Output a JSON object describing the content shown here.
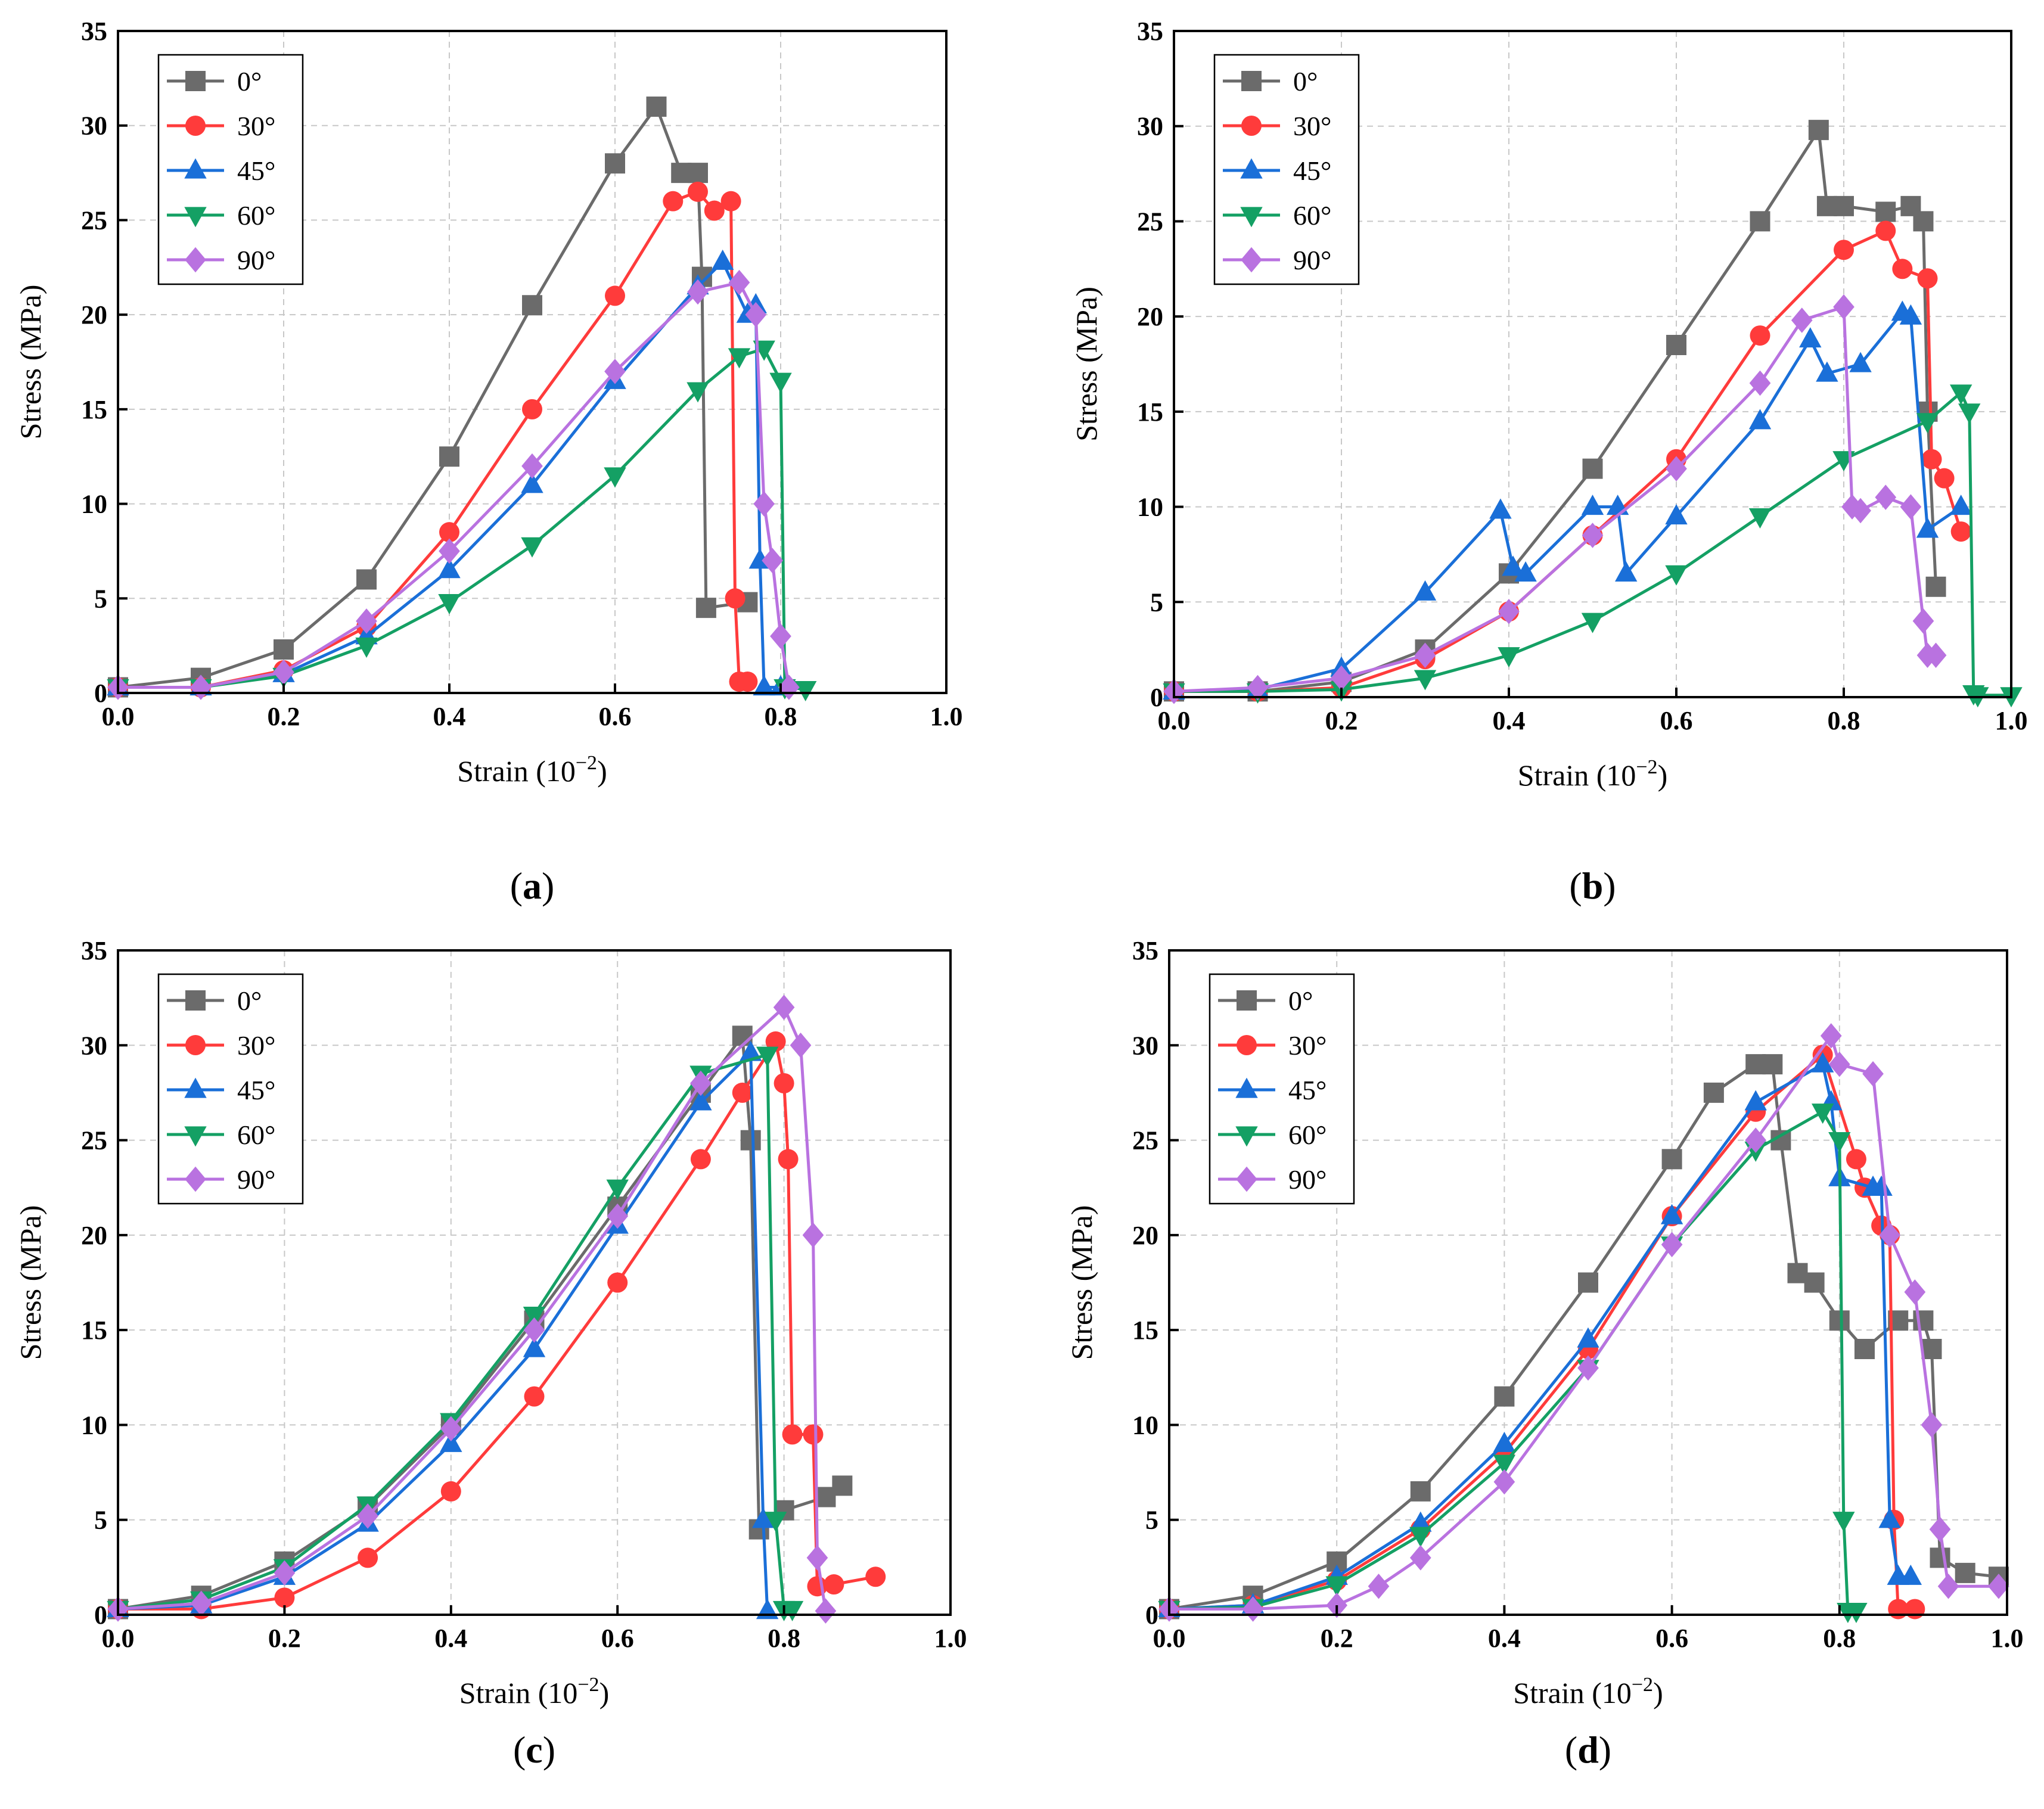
{
  "colors": {
    "0°": "#6b6b6b",
    "30°": "#ff3b3b",
    "45°": "#1a6fd8",
    "60°": "#14a064",
    "90°": "#b972e0"
  },
  "markers": {
    "0°": "square",
    "30°": "circle",
    "45°": "triangle-up",
    "60°": "triangle-down",
    "90°": "diamond"
  },
  "chart_data": [
    {
      "type": "line",
      "caption_letter": "a",
      "caption_open": "(",
      "caption_close": ")",
      "xlabel": "Strain (10",
      "xlabel_sup": "−2",
      "xlabel_end": ")",
      "ylabel": "Stress (MPa)",
      "xlim": [
        0,
        1.0
      ],
      "ylim": [
        0,
        35
      ],
      "xticks": [
        "0.0",
        "0.2",
        "0.4",
        "0.6",
        "0.8",
        "1.0"
      ],
      "yticks": [
        "0",
        "5",
        "10",
        "15",
        "20",
        "25",
        "30",
        "35"
      ],
      "legend": "top-left",
      "series": [
        {
          "name": "0°",
          "x": [
            0,
            0.1,
            0.2,
            0.3,
            0.4,
            0.5,
            0.6,
            0.65,
            0.68,
            0.7,
            0.705,
            0.71,
            0.76
          ],
          "y": [
            0.3,
            0.8,
            2.3,
            6,
            12.5,
            20.5,
            28,
            31,
            27.5,
            27.5,
            22,
            4.5,
            4.8
          ]
        },
        {
          "name": "30°",
          "x": [
            0,
            0.1,
            0.2,
            0.3,
            0.4,
            0.5,
            0.6,
            0.67,
            0.7,
            0.72,
            0.74,
            0.745,
            0.75,
            0.76
          ],
          "y": [
            0.3,
            0.3,
            1.2,
            3.5,
            8.5,
            15,
            21,
            26,
            26.5,
            25.5,
            26,
            5,
            0.6,
            0.6
          ]
        },
        {
          "name": "45°",
          "x": [
            0,
            0.1,
            0.2,
            0.3,
            0.4,
            0.5,
            0.6,
            0.7,
            0.73,
            0.76,
            0.77,
            0.775,
            0.78,
            0.8
          ],
          "y": [
            0.3,
            0.3,
            1,
            3,
            6.5,
            11,
            16.5,
            21.5,
            22.8,
            20,
            20.5,
            7,
            0.3,
            0.3
          ]
        },
        {
          "name": "60°",
          "x": [
            0,
            0.1,
            0.2,
            0.3,
            0.4,
            0.5,
            0.6,
            0.7,
            0.75,
            0.78,
            0.8,
            0.805,
            0.83
          ],
          "y": [
            0.3,
            0.3,
            0.9,
            2.5,
            4.8,
            7.8,
            11.5,
            16,
            17.8,
            18.2,
            16.5,
            0.3,
            0.2
          ]
        },
        {
          "name": "90°",
          "x": [
            0,
            0.1,
            0.2,
            0.3,
            0.4,
            0.5,
            0.6,
            0.7,
            0.75,
            0.77,
            0.78,
            0.79,
            0.8,
            0.81
          ],
          "y": [
            0.3,
            0.3,
            1.1,
            3.8,
            7.5,
            12,
            17,
            21.2,
            21.7,
            20,
            10,
            7,
            3,
            0.3
          ]
        }
      ]
    },
    {
      "type": "line",
      "caption_letter": "b",
      "caption_open": "(",
      "caption_close": ")",
      "xlabel": "Strain (10",
      "xlabel_sup": "−2",
      "xlabel_end": ")",
      "ylabel": "Stress (MPa)",
      "xlim": [
        0,
        1.0
      ],
      "ylim": [
        0,
        35
      ],
      "xticks": [
        "0.0",
        "0.2",
        "0.4",
        "0.6",
        "0.8",
        "1.0"
      ],
      "yticks": [
        "0",
        "5",
        "10",
        "15",
        "20",
        "25",
        "30",
        "35"
      ],
      "legend": "top-left",
      "series": [
        {
          "name": "0°",
          "x": [
            0,
            0.1,
            0.2,
            0.3,
            0.4,
            0.5,
            0.6,
            0.7,
            0.77,
            0.78,
            0.8,
            0.85,
            0.88,
            0.895,
            0.9,
            0.91
          ],
          "y": [
            0.3,
            0.3,
            0.8,
            2.5,
            6.5,
            12,
            18.5,
            25,
            29.8,
            25.8,
            25.8,
            25.5,
            25.8,
            25,
            15,
            5.8
          ]
        },
        {
          "name": "30°",
          "x": [
            0,
            0.1,
            0.2,
            0.3,
            0.4,
            0.5,
            0.6,
            0.7,
            0.8,
            0.85,
            0.87,
            0.9,
            0.905,
            0.92,
            0.94
          ],
          "y": [
            0.3,
            0.3,
            0.5,
            2,
            4.5,
            8.5,
            12.5,
            19,
            23.5,
            24.5,
            22.5,
            22,
            12.5,
            11.5,
            8.7
          ]
        },
        {
          "name": "45°",
          "x": [
            0,
            0.1,
            0.2,
            0.3,
            0.39,
            0.405,
            0.42,
            0.5,
            0.53,
            0.54,
            0.6,
            0.7,
            0.76,
            0.78,
            0.82,
            0.87,
            0.88,
            0.9,
            0.94
          ],
          "y": [
            0.3,
            0.4,
            1.5,
            5.5,
            9.8,
            6.8,
            6.5,
            10,
            10,
            6.5,
            9.5,
            14.5,
            18.8,
            17,
            17.5,
            20.2,
            20,
            8.8,
            10
          ]
        },
        {
          "name": "60°",
          "x": [
            0,
            0.1,
            0.2,
            0.3,
            0.4,
            0.5,
            0.6,
            0.7,
            0.8,
            0.9,
            0.94,
            0.95,
            0.955,
            0.96,
            1.0
          ],
          "y": [
            0.3,
            0.3,
            0.4,
            1,
            2.2,
            4,
            6.5,
            9.5,
            12.5,
            14.5,
            16,
            15,
            0.2,
            0.1,
            0.1
          ]
        },
        {
          "name": "90°",
          "x": [
            0,
            0.1,
            0.2,
            0.3,
            0.4,
            0.5,
            0.6,
            0.7,
            0.75,
            0.8,
            0.81,
            0.82,
            0.85,
            0.88,
            0.895,
            0.9,
            0.91
          ],
          "y": [
            0.3,
            0.5,
            1,
            2.2,
            4.5,
            8.5,
            12,
            16.5,
            19.8,
            20.5,
            10,
            9.8,
            10.5,
            10,
            4,
            2.2,
            2.2
          ]
        }
      ]
    },
    {
      "type": "line",
      "caption_letter": "c",
      "caption_open": "(",
      "caption_close": ")",
      "xlabel": "Strain (10",
      "xlabel_sup": "−2",
      "xlabel_end": ")",
      "ylabel": "Stress (MPa)",
      "xlim": [
        0,
        1.0
      ],
      "ylim": [
        0,
        35
      ],
      "xticks": [
        "0.0",
        "0.2",
        "0.4",
        "0.6",
        "0.8",
        "1.0"
      ],
      "yticks": [
        "0",
        "5",
        "10",
        "15",
        "20",
        "25",
        "30",
        "35"
      ],
      "legend": "top-left",
      "series": [
        {
          "name": "0°",
          "x": [
            0,
            0.1,
            0.2,
            0.3,
            0.4,
            0.5,
            0.6,
            0.7,
            0.75,
            0.76,
            0.77,
            0.8,
            0.85,
            0.87
          ],
          "y": [
            0.3,
            1,
            2.8,
            5.7,
            10,
            15.5,
            21.5,
            27.5,
            30.5,
            25,
            4.5,
            5.5,
            6.2,
            6.8
          ]
        },
        {
          "name": "30°",
          "x": [
            0,
            0.1,
            0.2,
            0.3,
            0.4,
            0.5,
            0.6,
            0.7,
            0.75,
            0.79,
            0.8,
            0.805,
            0.81,
            0.835,
            0.84,
            0.86,
            0.91
          ],
          "y": [
            0.3,
            0.3,
            0.9,
            3,
            6.5,
            11.5,
            17.5,
            24,
            27.5,
            30.2,
            28,
            24,
            9.5,
            9.5,
            1.5,
            1.6,
            2
          ]
        },
        {
          "name": "45°",
          "x": [
            0,
            0.1,
            0.2,
            0.3,
            0.4,
            0.5,
            0.6,
            0.7,
            0.76,
            0.775,
            0.78
          ],
          "y": [
            0.3,
            0.5,
            2,
            4.8,
            9,
            14,
            20.5,
            27,
            29.6,
            5,
            0.2
          ]
        },
        {
          "name": "60°",
          "x": [
            0,
            0.1,
            0.2,
            0.3,
            0.4,
            0.5,
            0.6,
            0.7,
            0.78,
            0.79,
            0.8,
            0.81
          ],
          "y": [
            0.3,
            0.8,
            2.5,
            5.8,
            10.2,
            15.8,
            22.5,
            28.5,
            29.5,
            5,
            0.3,
            0.3
          ]
        },
        {
          "name": "90°",
          "x": [
            0,
            0.1,
            0.2,
            0.3,
            0.4,
            0.5,
            0.6,
            0.7,
            0.8,
            0.82,
            0.835,
            0.84,
            0.85
          ],
          "y": [
            0.3,
            0.6,
            2.2,
            5.2,
            9.8,
            15,
            21,
            28,
            32,
            30,
            20,
            3,
            0.2
          ]
        }
      ]
    },
    {
      "type": "line",
      "caption_letter": "d",
      "caption_open": "(",
      "caption_close": ")",
      "xlabel": "Strain (10",
      "xlabel_sup": "−2",
      "xlabel_end": ")",
      "ylabel": "Stress (MPa)",
      "xlim": [
        0,
        1.0
      ],
      "ylim": [
        0,
        35
      ],
      "xticks": [
        "0.0",
        "0.2",
        "0.4",
        "0.6",
        "0.8",
        "1.0"
      ],
      "yticks": [
        "0",
        "5",
        "10",
        "15",
        "20",
        "25",
        "30",
        "35"
      ],
      "legend": "top-left",
      "series": [
        {
          "name": "0°",
          "x": [
            0,
            0.1,
            0.2,
            0.3,
            0.4,
            0.5,
            0.6,
            0.65,
            0.7,
            0.72,
            0.73,
            0.75,
            0.77,
            0.8,
            0.83,
            0.87,
            0.9,
            0.91,
            0.92,
            0.95,
            0.99
          ],
          "y": [
            0.3,
            1,
            2.8,
            6.5,
            11.5,
            17.5,
            24,
            27.5,
            29,
            29,
            25,
            18,
            17.5,
            15.5,
            14,
            15.5,
            15.5,
            14,
            3,
            2.2,
            2
          ]
        },
        {
          "name": "30°",
          "x": [
            0,
            0.1,
            0.2,
            0.3,
            0.4,
            0.5,
            0.6,
            0.7,
            0.78,
            0.82,
            0.83,
            0.85,
            0.86,
            0.865,
            0.87,
            0.89
          ],
          "y": [
            0.3,
            0.5,
            1.8,
            4.5,
            8.5,
            14,
            21,
            26.5,
            29.5,
            24,
            22.5,
            20.5,
            20,
            5,
            0.3,
            0.3
          ]
        },
        {
          "name": "45°",
          "x": [
            0,
            0.1,
            0.2,
            0.3,
            0.4,
            0.5,
            0.6,
            0.7,
            0.78,
            0.79,
            0.8,
            0.84,
            0.85,
            0.86,
            0.87,
            0.885
          ],
          "y": [
            0.3,
            0.5,
            2,
            4.8,
            9,
            14.5,
            21,
            27,
            29,
            27,
            23,
            22.5,
            22.5,
            5,
            2,
            2
          ]
        },
        {
          "name": "60°",
          "x": [
            0,
            0.1,
            0.2,
            0.3,
            0.4,
            0.5,
            0.6,
            0.7,
            0.78,
            0.8,
            0.805,
            0.81,
            0.82
          ],
          "y": [
            0.3,
            0.4,
            1.6,
            4.2,
            8,
            13,
            19.5,
            24.5,
            26.5,
            25,
            5,
            0.2,
            0.2
          ]
        },
        {
          "name": "90°",
          "x": [
            0,
            0.1,
            0.2,
            0.25,
            0.3,
            0.4,
            0.5,
            0.6,
            0.7,
            0.79,
            0.8,
            0.84,
            0.86,
            0.89,
            0.91,
            0.92,
            0.93,
            0.99
          ],
          "y": [
            0.3,
            0.3,
            0.5,
            1.5,
            3,
            7,
            13,
            19.5,
            25,
            30.5,
            29,
            28.5,
            20,
            17,
            10,
            4.5,
            1.5,
            1.5
          ]
        }
      ]
    }
  ]
}
